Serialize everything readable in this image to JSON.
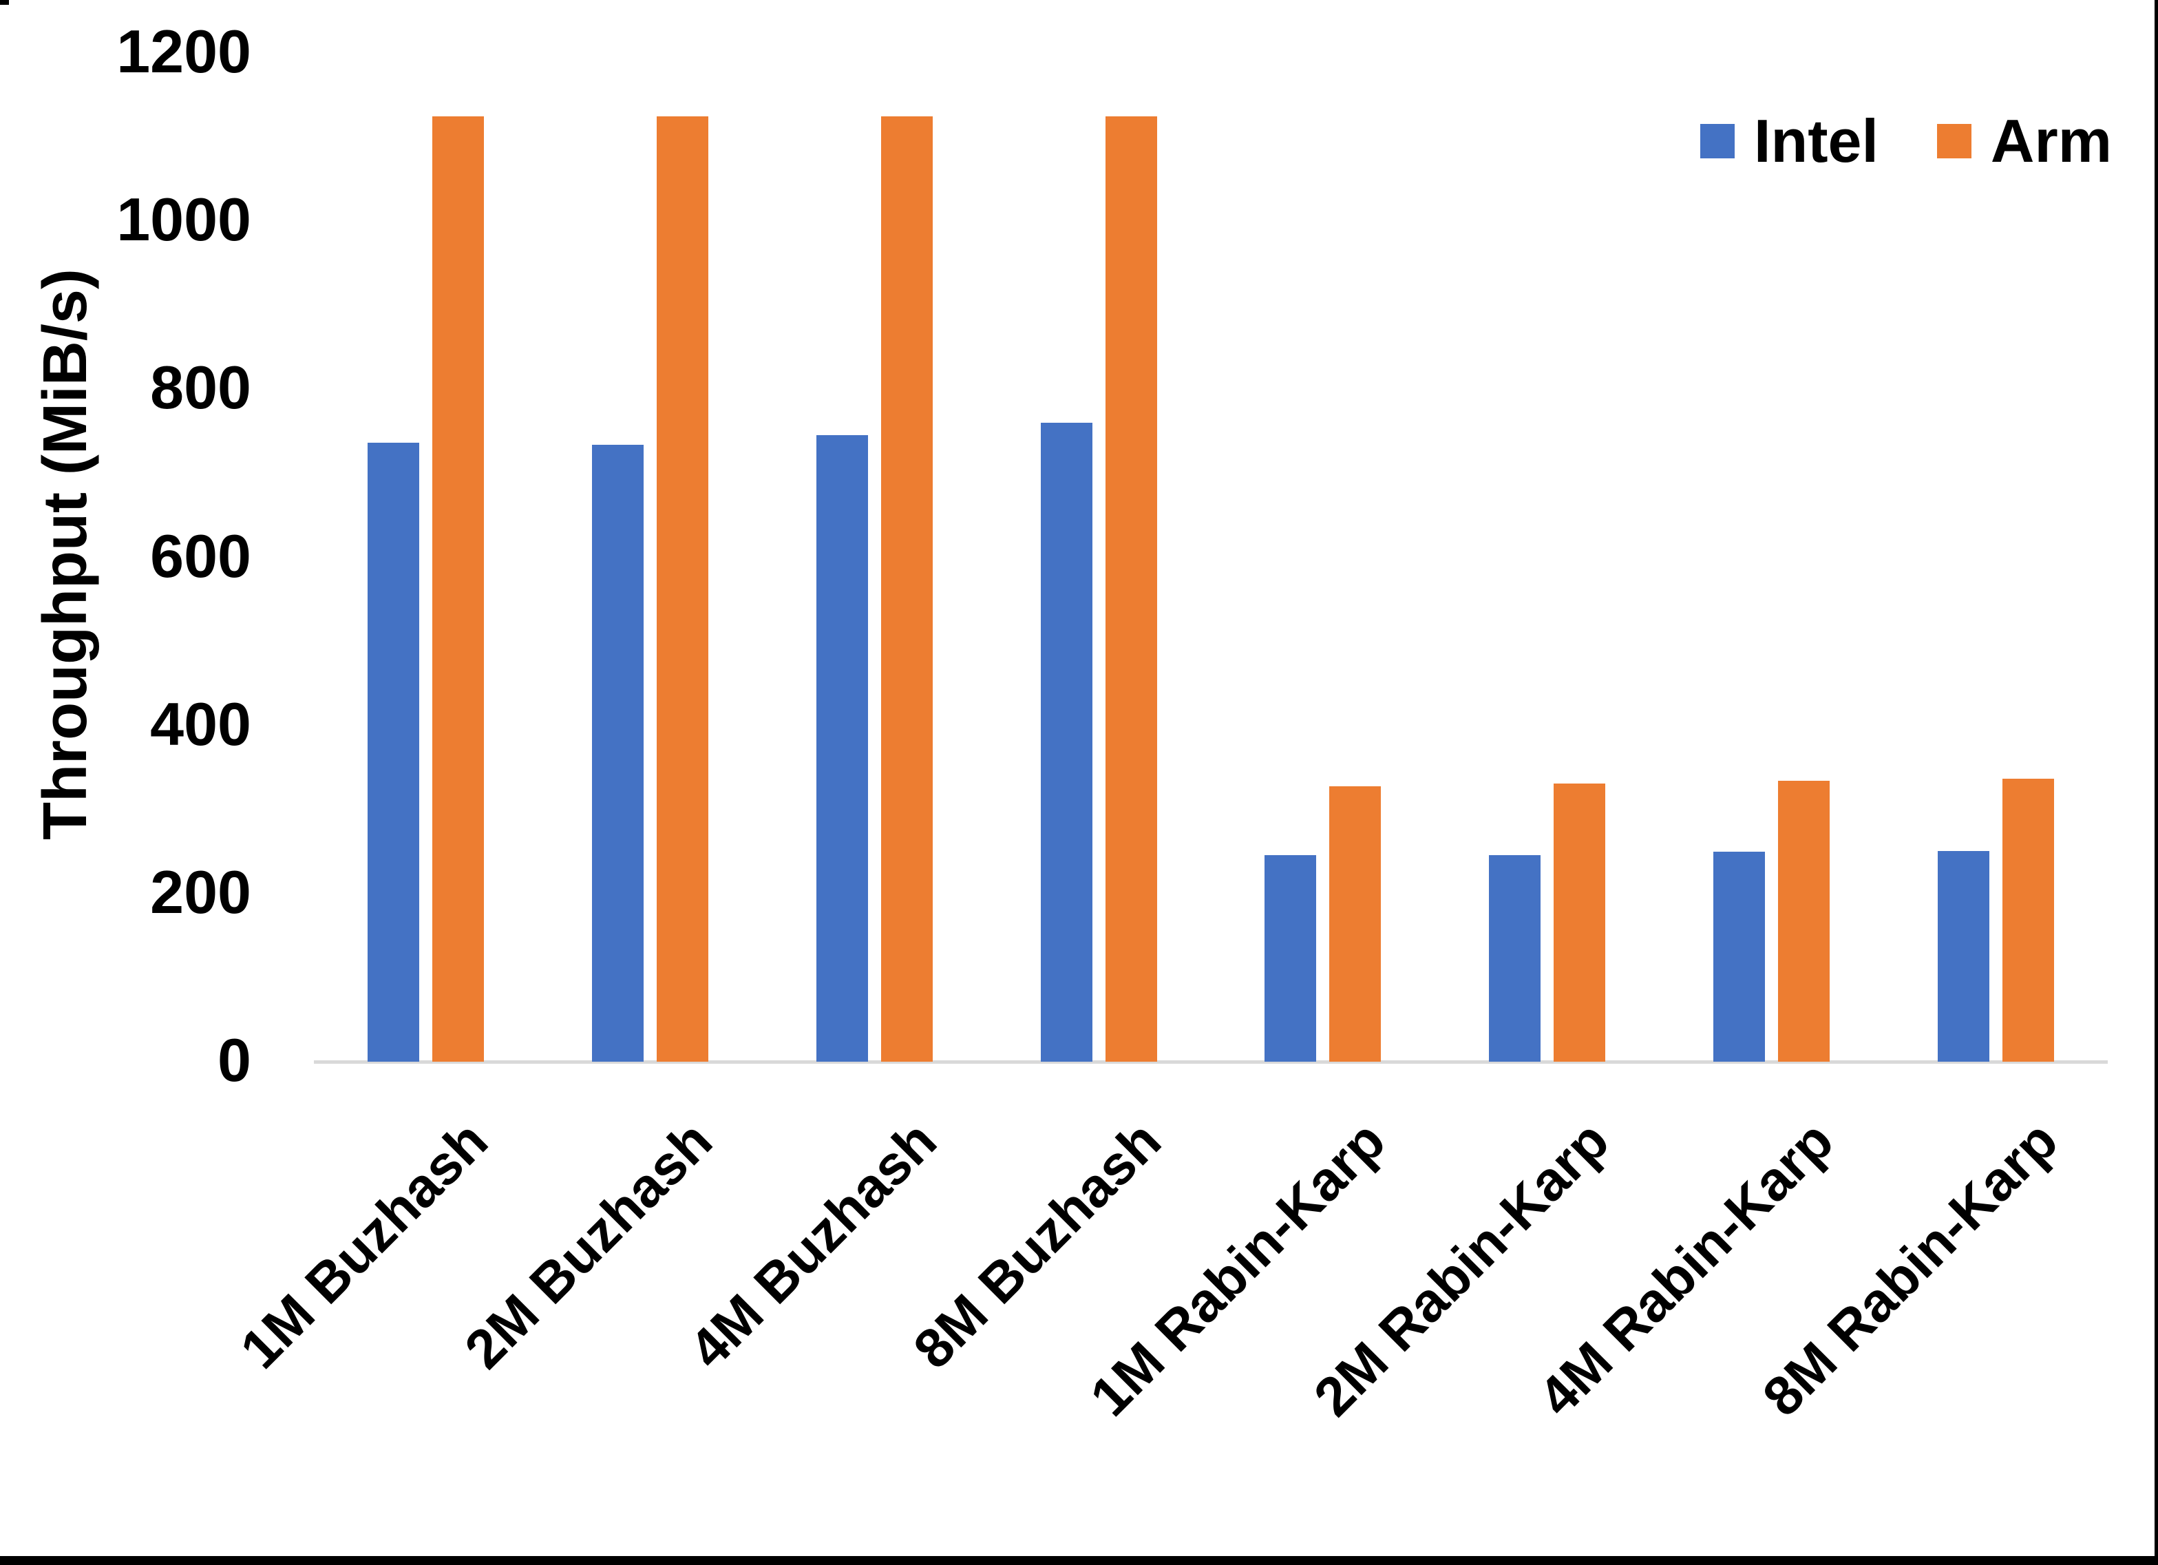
{
  "chart_data": {
    "type": "bar",
    "categories": [
      "1M Buzhash",
      "2M Buzhash",
      "4M Buzhash",
      "8M Buzhash",
      "1M Rabin-Karp",
      "2M Rabin-Karp",
      "4M Rabin-Karp",
      "8M Rabin-Karp"
    ],
    "series": [
      {
        "name": "Intel",
        "color": "#4472C4",
        "values": [
          736,
          734,
          745,
          760,
          246,
          246,
          250,
          251
        ]
      },
      {
        "name": "Arm",
        "color": "#ED7D31",
        "values": [
          1125,
          1125,
          1125,
          1125,
          328,
          331,
          334,
          337
        ]
      }
    ],
    "title": "",
    "xlabel": "",
    "ylabel": "Throughput (MiB/s)",
    "yticks": [
      0,
      200,
      400,
      600,
      800,
      1000,
      1200
    ],
    "ylim": [
      0,
      1200
    ],
    "grid": false,
    "legend_position": "top-right",
    "colors": {
      "axis_line": "#D9D9D9",
      "text": "#000000",
      "background": "#FFFFFF",
      "frame": "#000000"
    }
  }
}
